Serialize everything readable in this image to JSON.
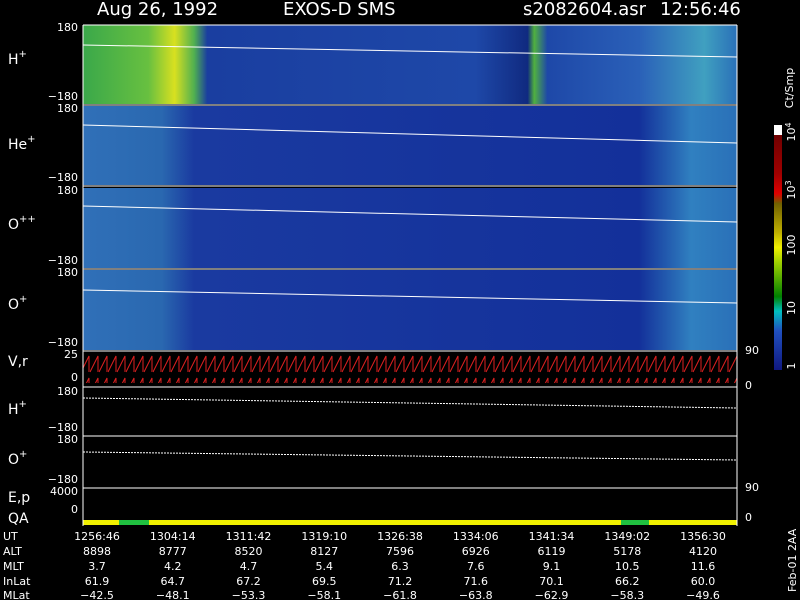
{
  "header": {
    "date": "Aug 26, 1992",
    "instrument": "EXOS-D SMS",
    "file": "s2082604.asr",
    "time": "12:56:46"
  },
  "panels": [
    {
      "label": "H",
      "charge": "+",
      "top": "180",
      "bottom": "−180"
    },
    {
      "label": "He",
      "charge": "+",
      "top": "180",
      "bottom": "−180"
    },
    {
      "label": "O",
      "charge": "++",
      "top": "180",
      "bottom": "−180"
    },
    {
      "label": "O",
      "charge": "+",
      "top": "180",
      "bottom": "−180"
    },
    {
      "label": "V,r",
      "top": "25",
      "bottom": "0",
      "right_top": "90",
      "right_bottom": "0"
    },
    {
      "label": "H",
      "charge": "+",
      "top": "180",
      "bottom": "−180"
    },
    {
      "label": "O",
      "charge": "+",
      "top": "180",
      "bottom": "−180"
    },
    {
      "label": "E,p",
      "top": "4000",
      "bottom": "0",
      "right_top": "90",
      "right_bottom": "0"
    },
    {
      "label": "QA"
    }
  ],
  "colorbar": {
    "label": "Ct/Smp",
    "ticks": [
      {
        "base": "10",
        "exp": "4"
      },
      {
        "base": "10",
        "exp": "3"
      },
      {
        "base": "100"
      },
      {
        "base": "10"
      },
      {
        "base": "1"
      }
    ]
  },
  "table": {
    "rows": [
      {
        "label": "UT",
        "values": [
          "1256:46",
          "1304:14",
          "1311:42",
          "1319:10",
          "1326:38",
          "1334:06",
          "1341:34",
          "1349:02",
          "1356:30"
        ]
      },
      {
        "label": "ALT",
        "values": [
          "8898",
          "8777",
          "8520",
          "8127",
          "7596",
          "6926",
          "6119",
          "5178",
          "4120"
        ]
      },
      {
        "label": "MLT",
        "values": [
          "3.7",
          "4.2",
          "4.7",
          "5.4",
          "6.3",
          "7.6",
          "9.1",
          "10.5",
          "11.6"
        ]
      },
      {
        "label": "InLat",
        "values": [
          "61.9",
          "64.7",
          "67.2",
          "69.5",
          "71.2",
          "71.6",
          "70.1",
          "66.2",
          "60.0"
        ]
      },
      {
        "label": "MLat",
        "values": [
          "−42.5",
          "−48.1",
          "−53.3",
          "−58.1",
          "−61.8",
          "−63.8",
          "−62.9",
          "−58.3",
          "−49.6"
        ]
      }
    ]
  },
  "footer": "Feb-01 2AA"
}
